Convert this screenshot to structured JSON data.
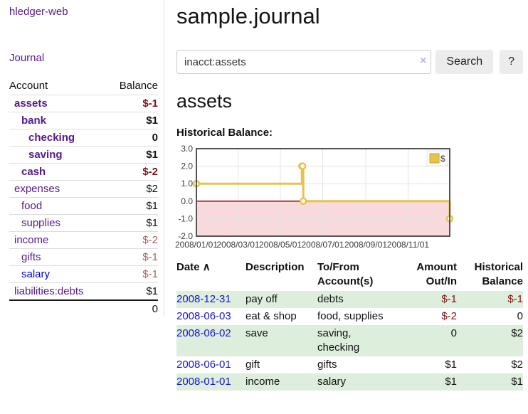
{
  "app": {
    "brand": "hledger-web"
  },
  "sidebar": {
    "nav": [
      {
        "label": "Journal"
      }
    ],
    "accounts_header": {
      "account": "Account",
      "balance": "Balance"
    },
    "accounts": [
      {
        "name": "assets",
        "balance": "$-1",
        "indent": 1,
        "matched": true,
        "negative": true,
        "muted": false,
        "blue": false
      },
      {
        "name": "bank",
        "balance": "$1",
        "indent": 2,
        "matched": true,
        "negative": false,
        "muted": false,
        "blue": false
      },
      {
        "name": "checking",
        "balance": "0",
        "indent": 3,
        "matched": true,
        "negative": false,
        "muted": false,
        "blue": false
      },
      {
        "name": "saving",
        "balance": "$1",
        "indent": 3,
        "matched": true,
        "negative": false,
        "muted": false,
        "blue": false
      },
      {
        "name": "cash",
        "balance": "$-2",
        "indent": 2,
        "matched": true,
        "negative": true,
        "muted": false,
        "blue": false
      },
      {
        "name": "expenses",
        "balance": "$2",
        "indent": 1,
        "matched": false,
        "negative": false,
        "muted": false,
        "blue": false
      },
      {
        "name": "food",
        "balance": "$1",
        "indent": 2,
        "matched": false,
        "negative": false,
        "muted": false,
        "blue": false
      },
      {
        "name": "supplies",
        "balance": "$1",
        "indent": 2,
        "matched": false,
        "negative": false,
        "muted": false,
        "blue": false
      },
      {
        "name": "income",
        "balance": "$-2",
        "indent": 1,
        "matched": false,
        "negative": true,
        "muted": true,
        "blue": false
      },
      {
        "name": "gifts",
        "balance": "$-1",
        "indent": 2,
        "matched": false,
        "negative": true,
        "muted": true,
        "blue": false
      },
      {
        "name": "salary",
        "balance": "$-1",
        "indent": 2,
        "matched": false,
        "negative": true,
        "muted": true,
        "blue": true
      },
      {
        "name": "liabilities:debts",
        "balance": "$1",
        "indent": 1,
        "matched": false,
        "negative": false,
        "muted": false,
        "blue": false
      }
    ],
    "total": "0"
  },
  "header": {
    "title": "sample.journal"
  },
  "search": {
    "value": "inacct:assets",
    "clear_icon": "×",
    "button_label": "Search",
    "help_label": "?"
  },
  "account_page": {
    "heading": "assets",
    "chart_label": "Historical Balance:"
  },
  "chart_data": {
    "type": "line",
    "step": true,
    "title": "Historical Balance",
    "legend": "$",
    "legend_position": "top-right",
    "series": [
      {
        "name": "$",
        "points": [
          {
            "date": "2008-01-01",
            "value": 1
          },
          {
            "date": "2008-06-01",
            "value": 2
          },
          {
            "date": "2008-06-02",
            "value": 2
          },
          {
            "date": "2008-06-03",
            "value": 0
          },
          {
            "date": "2008-12-31",
            "value": -1
          }
        ]
      }
    ],
    "xrange": [
      "2008-01-01",
      "2008-12-31"
    ],
    "ylim": [
      -2,
      3
    ],
    "yticks": [
      "3.0",
      "2.0",
      "1.0",
      "0.0",
      "-1.0",
      "-2.0"
    ],
    "ytick_values": [
      3,
      2,
      1,
      0,
      -1,
      -2
    ],
    "xticks": [
      "2008/01/01",
      "2008/03/01",
      "2008/05/01",
      "2008/07/01",
      "2008/09/01",
      "2008/11/01"
    ],
    "xtick_dates": [
      "2008-01-01",
      "2008-03-01",
      "2008-05-01",
      "2008-07-01",
      "2008-09-01",
      "2008-11-01"
    ],
    "grid": true,
    "colors": {
      "line": "#e8c24a",
      "marker_fill": "#ffffff",
      "negative_region": "#f9dadc",
      "zero_line": "#990000",
      "gridline": "#e4e4e4",
      "border": "#545454"
    }
  },
  "register": {
    "columns": [
      {
        "label": "Date",
        "sort_arrow": "∧",
        "align": "left"
      },
      {
        "label": "Description",
        "align": "left"
      },
      {
        "label": "To/From Account(s)",
        "align": "left"
      },
      {
        "label": "Amount Out/In",
        "align": "right"
      },
      {
        "label": "Historical Balance",
        "align": "right"
      }
    ],
    "rows": [
      {
        "date": "2008-12-31",
        "description": "pay off",
        "accounts": "debts",
        "amount": "$-1",
        "amount_negative": true,
        "balance": "$-1",
        "balance_negative": true
      },
      {
        "date": "2008-06-03",
        "description": "eat & shop",
        "accounts": "food, supplies",
        "amount": "$-2",
        "amount_negative": true,
        "balance": "0",
        "balance_negative": false
      },
      {
        "date": "2008-06-02",
        "description": "save",
        "accounts": "saving, checking",
        "amount": "0",
        "amount_negative": false,
        "balance": "$2",
        "balance_negative": false
      },
      {
        "date": "2008-06-01",
        "description": "gift",
        "accounts": "gifts",
        "amount": "$1",
        "amount_negative": false,
        "balance": "$2",
        "balance_negative": false
      },
      {
        "date": "2008-01-01",
        "description": "income",
        "accounts": "salary",
        "amount": "$1",
        "amount_negative": false,
        "balance": "$1",
        "balance_negative": false
      }
    ]
  },
  "colors": {
    "accent_purple": "#551a8b",
    "link_blue": "#1616cf",
    "negative_red": "#7f1419",
    "negative_muted": "#b05d66",
    "row_stripe_green": "#ddeedd"
  }
}
